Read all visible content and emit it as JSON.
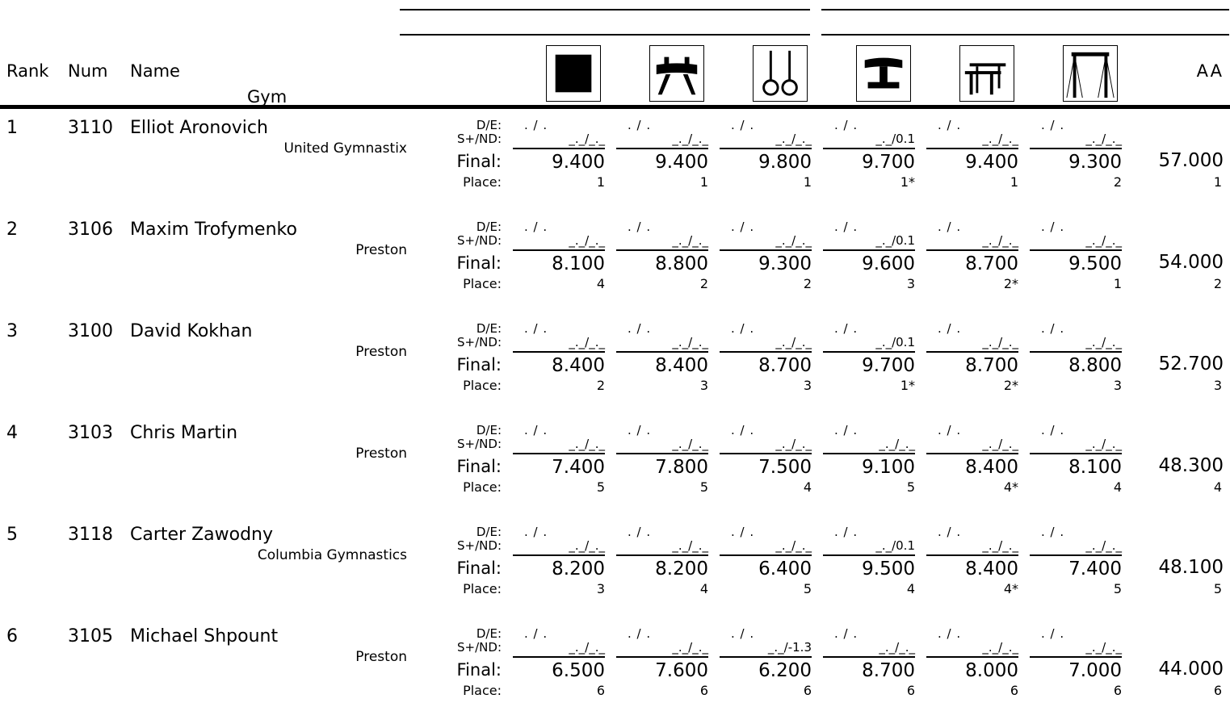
{
  "header": {
    "rank": "Rank",
    "num": "Num",
    "name": "Name",
    "gym": "Gym",
    "aa": "AA"
  },
  "events": [
    {
      "icon": "floor-icon"
    },
    {
      "icon": "pommel-horse-icon"
    },
    {
      "icon": "rings-icon"
    },
    {
      "icon": "vault-icon"
    },
    {
      "icon": "parallel-bars-icon"
    },
    {
      "icon": "high-bar-icon"
    }
  ],
  "labels": {
    "de": "D/E:",
    "sn": "S+/ND:",
    "final": "Final:",
    "place": "Place:"
  },
  "athletes": [
    {
      "rank": "1",
      "num": "3110",
      "name": "Elliot Aronovich",
      "gym": "United Gymnastix",
      "scores": [
        {
          "de": ". / .",
          "sn": "_._/_._",
          "final": "9.400",
          "place": "1"
        },
        {
          "de": ". / .",
          "sn": "_._/_._",
          "final": "9.400",
          "place": "1"
        },
        {
          "de": ". / .",
          "sn": "_._/_._",
          "final": "9.800",
          "place": "1"
        },
        {
          "de": ". / .",
          "sn": "_._/0.1",
          "final": "9.700",
          "place": "1*"
        },
        {
          "de": ". / .",
          "sn": "_._/_._",
          "final": "9.400",
          "place": "1"
        },
        {
          "de": ". / .",
          "sn": "_._/_._",
          "final": "9.300",
          "place": "2"
        }
      ],
      "aa": "57.000",
      "aa_place": "1"
    },
    {
      "rank": "2",
      "num": "3106",
      "name": "Maxim Trofymenko",
      "gym": "Preston",
      "scores": [
        {
          "de": ". / .",
          "sn": "_._/_._",
          "final": "8.100",
          "place": "4"
        },
        {
          "de": ". / .",
          "sn": "_._/_._",
          "final": "8.800",
          "place": "2"
        },
        {
          "de": ". / .",
          "sn": "_._/_._",
          "final": "9.300",
          "place": "2"
        },
        {
          "de": ". / .",
          "sn": "_._/0.1",
          "final": "9.600",
          "place": "3"
        },
        {
          "de": ". / .",
          "sn": "_._/_._",
          "final": "8.700",
          "place": "2*"
        },
        {
          "de": ". / .",
          "sn": "_._/_._",
          "final": "9.500",
          "place": "1"
        }
      ],
      "aa": "54.000",
      "aa_place": "2"
    },
    {
      "rank": "3",
      "num": "3100",
      "name": "David Kokhan",
      "gym": "Preston",
      "scores": [
        {
          "de": ". / .",
          "sn": "_._/_._",
          "final": "8.400",
          "place": "2"
        },
        {
          "de": ". / .",
          "sn": "_._/_._",
          "final": "8.400",
          "place": "3"
        },
        {
          "de": ". / .",
          "sn": "_._/_._",
          "final": "8.700",
          "place": "3"
        },
        {
          "de": ". / .",
          "sn": "_._/0.1",
          "final": "9.700",
          "place": "1*"
        },
        {
          "de": ". / .",
          "sn": "_._/_._",
          "final": "8.700",
          "place": "2*"
        },
        {
          "de": ". / .",
          "sn": "_._/_._",
          "final": "8.800",
          "place": "3"
        }
      ],
      "aa": "52.700",
      "aa_place": "3"
    },
    {
      "rank": "4",
      "num": "3103",
      "name": "Chris Martin",
      "gym": "Preston",
      "scores": [
        {
          "de": ". / .",
          "sn": "_._/_._",
          "final": "7.400",
          "place": "5"
        },
        {
          "de": ". / .",
          "sn": "_._/_._",
          "final": "7.800",
          "place": "5"
        },
        {
          "de": ". / .",
          "sn": "_._/_._",
          "final": "7.500",
          "place": "4"
        },
        {
          "de": ". / .",
          "sn": "_._/_._",
          "final": "9.100",
          "place": "5"
        },
        {
          "de": ". / .",
          "sn": "_._/_._",
          "final": "8.400",
          "place": "4*"
        },
        {
          "de": ". / .",
          "sn": "_._/_._",
          "final": "8.100",
          "place": "4"
        }
      ],
      "aa": "48.300",
      "aa_place": "4"
    },
    {
      "rank": "5",
      "num": "3118",
      "name": "Carter Zawodny",
      "gym": "Columbia Gymnastics",
      "scores": [
        {
          "de": ". / .",
          "sn": "_._/_._",
          "final": "8.200",
          "place": "3"
        },
        {
          "de": ". / .",
          "sn": "_._/_._",
          "final": "8.200",
          "place": "4"
        },
        {
          "de": ". / .",
          "sn": "_._/_._",
          "final": "6.400",
          "place": "5"
        },
        {
          "de": ". / .",
          "sn": "_._/0.1",
          "final": "9.500",
          "place": "4"
        },
        {
          "de": ". / .",
          "sn": "_._/_._",
          "final": "8.400",
          "place": "4*"
        },
        {
          "de": ". / .",
          "sn": "_._/_._",
          "final": "7.400",
          "place": "5"
        }
      ],
      "aa": "48.100",
      "aa_place": "5"
    },
    {
      "rank": "6",
      "num": "3105",
      "name": "Michael Shpount",
      "gym": "Preston",
      "scores": [
        {
          "de": ". / .",
          "sn": "_._/_._",
          "final": "6.500",
          "place": "6"
        },
        {
          "de": ". / .",
          "sn": "_._/_._",
          "final": "7.600",
          "place": "6"
        },
        {
          "de": ". / .",
          "sn": "_._/-1.3",
          "final": "6.200",
          "place": "6"
        },
        {
          "de": ". / .",
          "sn": "_._/_._",
          "final": "8.700",
          "place": "6"
        },
        {
          "de": ". / .",
          "sn": "_._/_._",
          "final": "8.000",
          "place": "6"
        },
        {
          "de": ". / .",
          "sn": "_._/_._",
          "final": "7.000",
          "place": "6"
        }
      ],
      "aa": "44.000",
      "aa_place": "6"
    }
  ]
}
